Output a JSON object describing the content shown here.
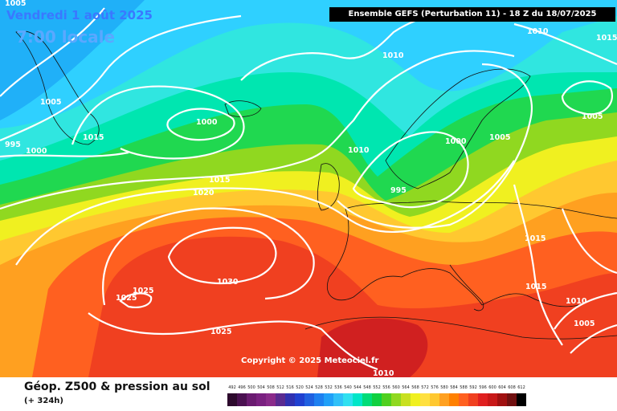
{
  "header": {
    "date": "Vendredi 1 août 2025",
    "time": "7:00 locale",
    "run": "Ensemble GEFS  (Perturbation 11)  -  18 Z du 18/07/2025"
  },
  "copyright": "Copyright © 2025 Meteociel.fr",
  "footer": {
    "title": "Géop. Z500 & pression au sol",
    "subtitle": "(+ 324h)"
  },
  "pressure_labels": [
    "1005",
    "1015",
    "1010",
    "1005",
    "1000",
    "995",
    "1000",
    "1015",
    "1010",
    "1000",
    "1005",
    "1010",
    "995",
    "1015",
    "1020",
    "1030",
    "1025",
    "1025",
    "1025",
    "1015",
    "1015",
    "1010",
    "1005",
    "1005",
    "1010"
  ],
  "scale": {
    "labels": [
      "492",
      "496",
      "500",
      "504",
      "508",
      "512",
      "516",
      "520",
      "524",
      "528",
      "532",
      "536",
      "540",
      "544",
      "548",
      "552",
      "556",
      "560",
      "564",
      "568",
      "572",
      "576",
      "580",
      "584",
      "588",
      "592",
      "596",
      "600",
      "604",
      "608",
      "612"
    ],
    "colors": [
      "#2d0a2d",
      "#4a1050",
      "#6a1a70",
      "#7a2080",
      "#8a2a8a",
      "#5a2a90",
      "#3030b0",
      "#2040d0",
      "#2060e0",
      "#1e80f0",
      "#20a0f8",
      "#30c0f8",
      "#30e0f0",
      "#00e6c8",
      "#00dc78",
      "#10d040",
      "#50d020",
      "#90d820",
      "#c8e020",
      "#f0f020",
      "#ffe040",
      "#ffc830",
      "#ffa020",
      "#ff8000",
      "#ff6020",
      "#f04020",
      "#e02020",
      "#c81818",
      "#a01010",
      "#701010",
      "#000000"
    ]
  }
}
